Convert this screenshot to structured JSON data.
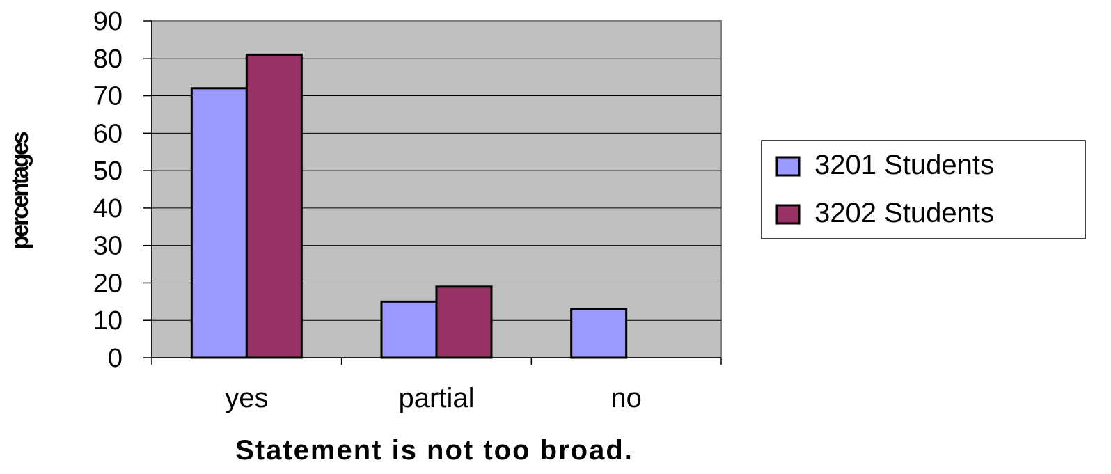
{
  "chart_data": {
    "type": "bar",
    "categories": [
      "yes",
      "partial",
      "no"
    ],
    "series": [
      {
        "name": "3201 Students",
        "values": [
          72,
          15,
          13
        ],
        "color": "#9999ff"
      },
      {
        "name": "3202 Students",
        "values": [
          81,
          19,
          0
        ],
        "color": "#993366"
      }
    ],
    "xlabel": "Statement is not too broad.",
    "ylabel": "percentages",
    "ylim": [
      0,
      90
    ],
    "yticks": [
      0,
      10,
      20,
      30,
      40,
      50,
      60,
      70,
      80,
      90
    ],
    "grid": true,
    "legend_position": "right",
    "plot_background": "#c0c0c0"
  }
}
